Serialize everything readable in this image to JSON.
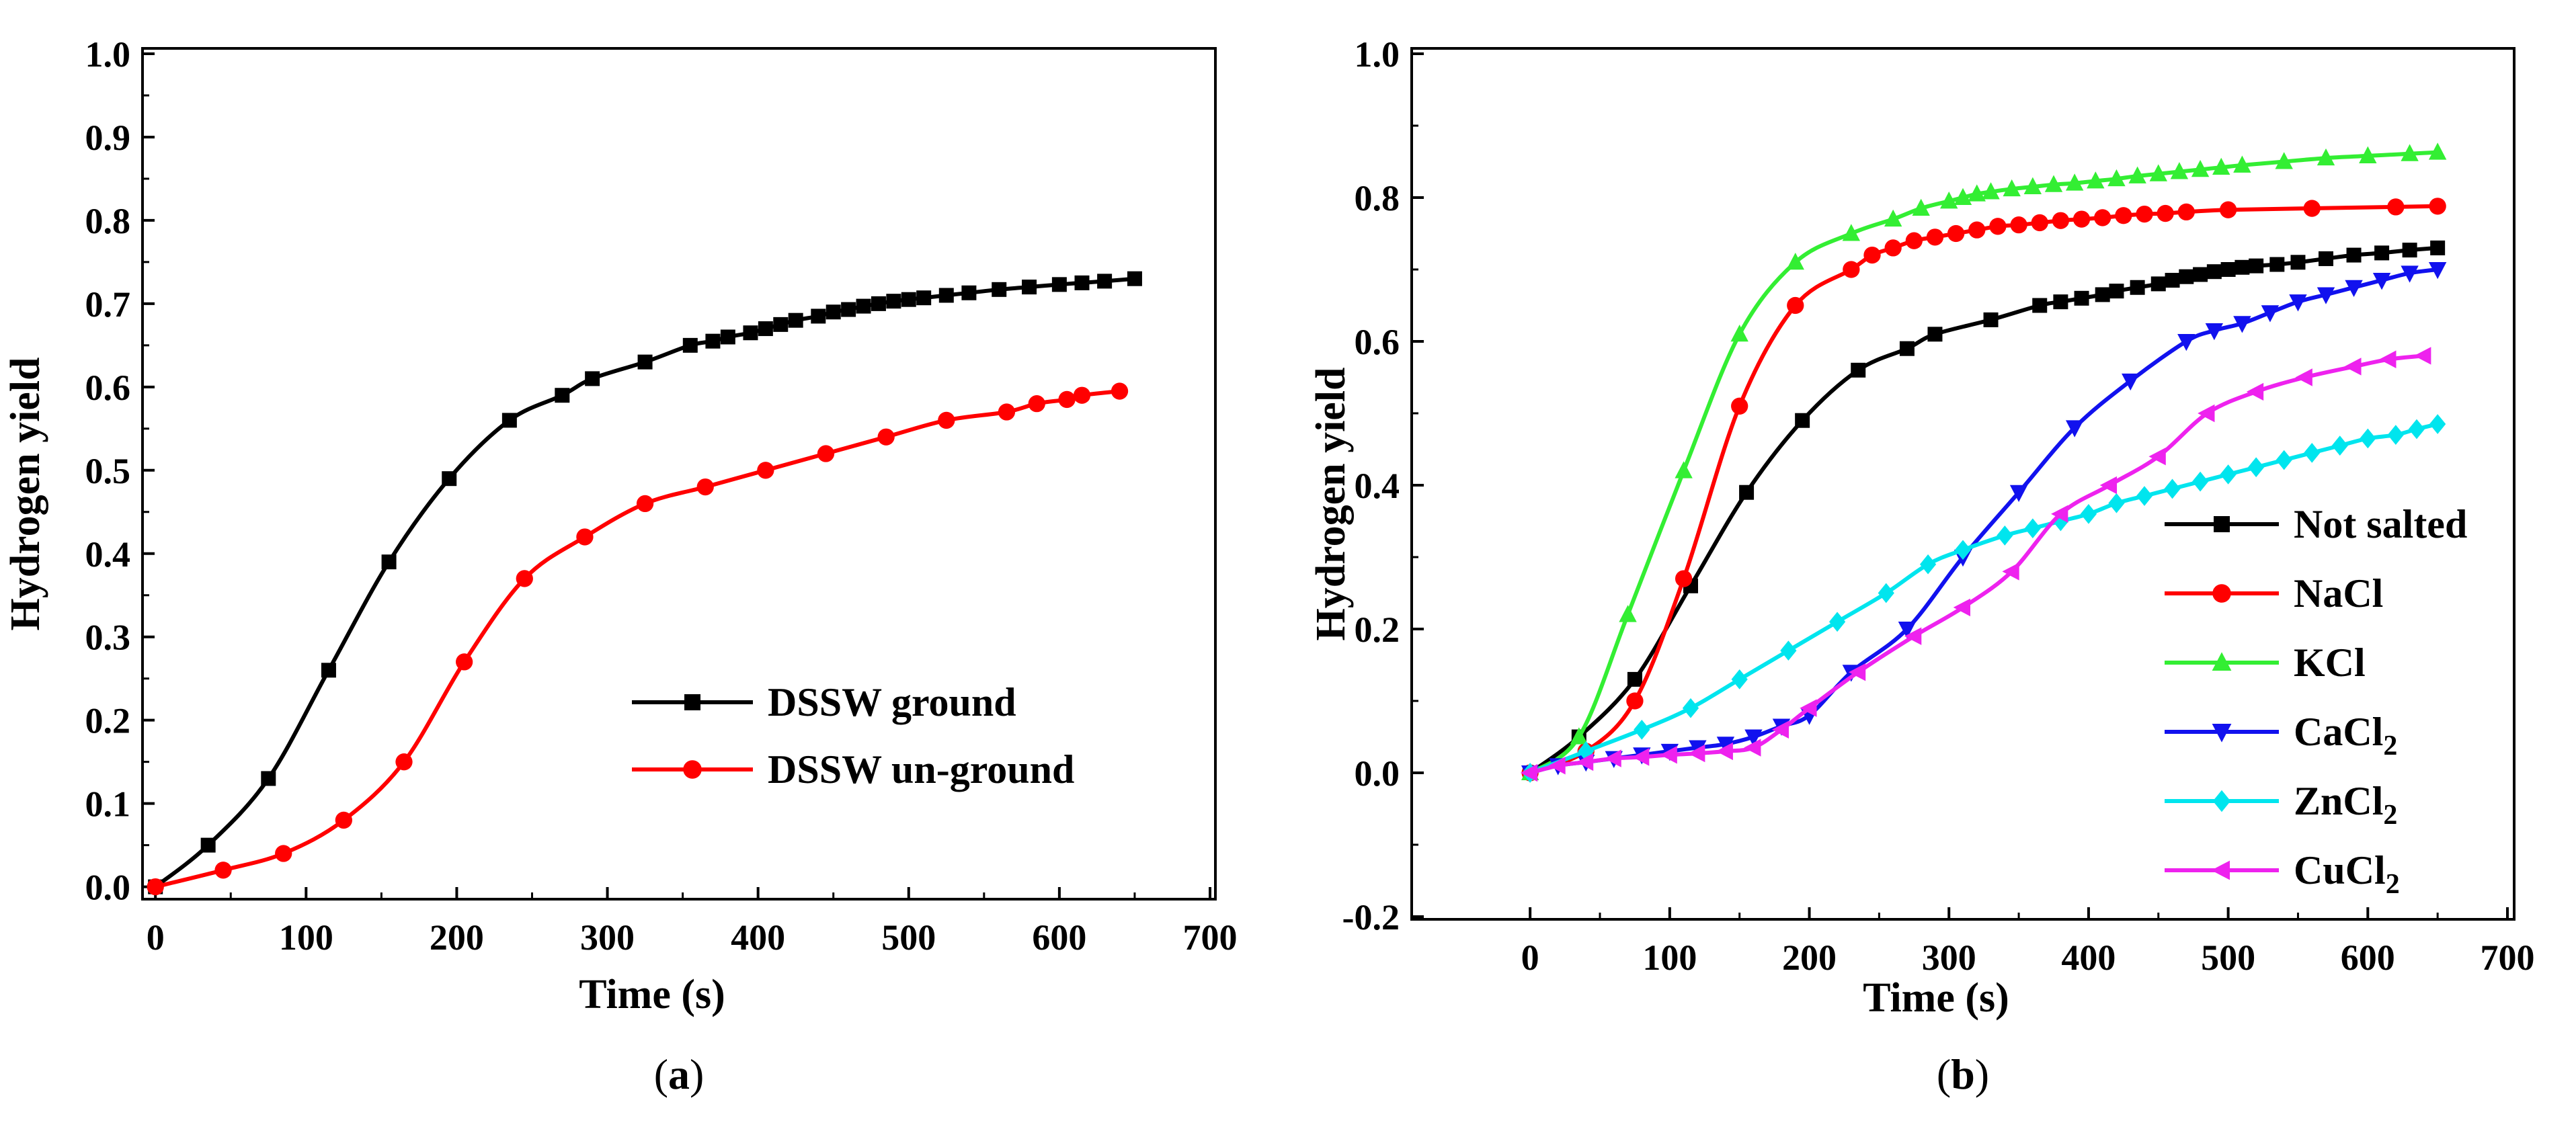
{
  "chart_data": [
    {
      "type": "line",
      "panel": "a",
      "caption_letter": "a",
      "xlabel": "Time (s)",
      "ylabel": "Hydrogen yield",
      "xlim": [
        -5,
        700
      ],
      "ylim": [
        -0.01,
        1.0
      ],
      "xticks": [
        0,
        100,
        200,
        300,
        400,
        500,
        600,
        700
      ],
      "yticks": [
        0.0,
        0.1,
        0.2,
        0.3,
        0.4,
        0.5,
        0.6,
        0.7,
        0.8,
        0.9,
        1.0
      ],
      "ytick_decimals": 1,
      "legend_position": "lower-right",
      "series": [
        {
          "name": "DSSW ground",
          "color": "#000000",
          "marker": "square",
          "x": [
            0,
            35,
            75,
            115,
            155,
            195,
            235,
            270,
            290,
            325,
            355,
            370,
            380,
            395,
            405,
            415,
            425,
            440,
            450,
            460,
            470,
            480,
            490,
            500,
            510,
            525,
            540,
            560,
            580,
            600,
            615,
            630,
            650
          ],
          "y": [
            0.0,
            0.05,
            0.13,
            0.26,
            0.39,
            0.49,
            0.56,
            0.59,
            0.61,
            0.63,
            0.65,
            0.655,
            0.66,
            0.665,
            0.67,
            0.675,
            0.68,
            0.685,
            0.69,
            0.693,
            0.697,
            0.7,
            0.703,
            0.705,
            0.707,
            0.71,
            0.713,
            0.717,
            0.72,
            0.723,
            0.725,
            0.727,
            0.73
          ]
        },
        {
          "name": "DSSW un-ground",
          "color": "#ff0000",
          "marker": "circle",
          "x": [
            0,
            45,
            85,
            125,
            165,
            205,
            245,
            285,
            325,
            365,
            405,
            445,
            485,
            525,
            565,
            585,
            605,
            615,
            640
          ],
          "y": [
            0.0,
            0.02,
            0.04,
            0.08,
            0.15,
            0.27,
            0.37,
            0.42,
            0.46,
            0.48,
            0.5,
            0.52,
            0.54,
            0.56,
            0.57,
            0.58,
            0.585,
            0.59,
            0.595
          ]
        }
      ]
    },
    {
      "type": "line",
      "panel": "b",
      "caption_letter": "b",
      "xlabel": "Time (s)",
      "ylabel": "Hydrogen yield",
      "xlim": [
        -80,
        700
      ],
      "ylim": [
        -0.2,
        1.0
      ],
      "xticks": [
        0,
        100,
        200,
        300,
        400,
        500,
        600,
        700
      ],
      "yticks": [
        -0.2,
        0.0,
        0.2,
        0.4,
        0.6,
        0.8,
        1.0
      ],
      "ytick_decimals": 1,
      "legend_position": "lower-right",
      "series": [
        {
          "name": "Not salted",
          "color": "#000000",
          "marker": "square",
          "x": [
            0,
            35,
            75,
            115,
            155,
            195,
            235,
            270,
            290,
            330,
            365,
            380,
            395,
            410,
            420,
            435,
            450,
            460,
            470,
            480,
            490,
            500,
            510,
            520,
            535,
            550,
            570,
            590,
            610,
            630,
            650
          ],
          "y": [
            0.0,
            0.05,
            0.13,
            0.26,
            0.39,
            0.49,
            0.56,
            0.59,
            0.61,
            0.63,
            0.65,
            0.655,
            0.66,
            0.665,
            0.67,
            0.675,
            0.68,
            0.685,
            0.69,
            0.693,
            0.697,
            0.7,
            0.703,
            0.705,
            0.707,
            0.71,
            0.715,
            0.72,
            0.723,
            0.727,
            0.73
          ]
        },
        {
          "name": "NaCl",
          "color": "#ff0000",
          "marker": "circle",
          "x": [
            0,
            40,
            75,
            110,
            150,
            190,
            230,
            245,
            260,
            275,
            290,
            305,
            320,
            335,
            350,
            365,
            380,
            395,
            410,
            425,
            440,
            455,
            470,
            500,
            560,
            620,
            650
          ],
          "y": [
            0.0,
            0.03,
            0.1,
            0.27,
            0.51,
            0.65,
            0.7,
            0.72,
            0.73,
            0.74,
            0.745,
            0.75,
            0.755,
            0.76,
            0.762,
            0.765,
            0.768,
            0.77,
            0.772,
            0.775,
            0.777,
            0.778,
            0.78,
            0.783,
            0.785,
            0.787,
            0.788
          ]
        },
        {
          "name": "KCl",
          "color": "#33ee33",
          "marker": "triangle-up",
          "x": [
            0,
            35,
            70,
            110,
            150,
            190,
            230,
            260,
            280,
            300,
            310,
            320,
            330,
            345,
            360,
            375,
            390,
            405,
            420,
            435,
            450,
            465,
            480,
            495,
            510,
            540,
            570,
            600,
            630,
            650
          ],
          "y": [
            0.0,
            0.05,
            0.22,
            0.42,
            0.61,
            0.71,
            0.75,
            0.77,
            0.785,
            0.795,
            0.8,
            0.805,
            0.808,
            0.812,
            0.815,
            0.818,
            0.82,
            0.823,
            0.826,
            0.83,
            0.833,
            0.836,
            0.839,
            0.842,
            0.845,
            0.85,
            0.855,
            0.858,
            0.861,
            0.863
          ]
        },
        {
          "name": "CaCl₂",
          "color": "#1111ee",
          "marker": "triangle-down",
          "x": [
            0,
            20,
            40,
            60,
            80,
            100,
            120,
            140,
            160,
            180,
            200,
            230,
            270,
            310,
            350,
            390,
            430,
            470,
            490,
            510,
            530,
            550,
            570,
            590,
            610,
            630,
            650
          ],
          "y": [
            0.0,
            0.01,
            0.015,
            0.02,
            0.025,
            0.03,
            0.035,
            0.04,
            0.05,
            0.065,
            0.08,
            0.14,
            0.2,
            0.3,
            0.39,
            0.48,
            0.545,
            0.6,
            0.615,
            0.625,
            0.64,
            0.655,
            0.665,
            0.675,
            0.685,
            0.695,
            0.7
          ]
        },
        {
          "name": "ZnCl₂",
          "color": "#00e5ee",
          "marker": "diamond",
          "x": [
            0,
            40,
            80,
            115,
            150,
            185,
            220,
            255,
            285,
            310,
            340,
            360,
            380,
            400,
            420,
            440,
            460,
            480,
            500,
            520,
            540,
            560,
            580,
            600,
            620,
            635,
            650
          ],
          "y": [
            0.0,
            0.03,
            0.06,
            0.09,
            0.13,
            0.17,
            0.21,
            0.25,
            0.29,
            0.31,
            0.33,
            0.34,
            0.35,
            0.36,
            0.375,
            0.385,
            0.395,
            0.405,
            0.415,
            0.425,
            0.435,
            0.445,
            0.455,
            0.465,
            0.47,
            0.478,
            0.485
          ]
        },
        {
          "name": "CuCl₂",
          "color": "#ee22ee",
          "marker": "triangle-left",
          "x": [
            0,
            20,
            40,
            60,
            80,
            100,
            120,
            140,
            160,
            180,
            200,
            235,
            275,
            310,
            345,
            380,
            415,
            450,
            485,
            520,
            555,
            590,
            615,
            640
          ],
          "y": [
            0.0,
            0.01,
            0.015,
            0.02,
            0.022,
            0.025,
            0.027,
            0.03,
            0.035,
            0.06,
            0.09,
            0.14,
            0.19,
            0.23,
            0.28,
            0.36,
            0.4,
            0.44,
            0.5,
            0.53,
            0.55,
            0.565,
            0.575,
            0.58
          ]
        }
      ]
    }
  ]
}
